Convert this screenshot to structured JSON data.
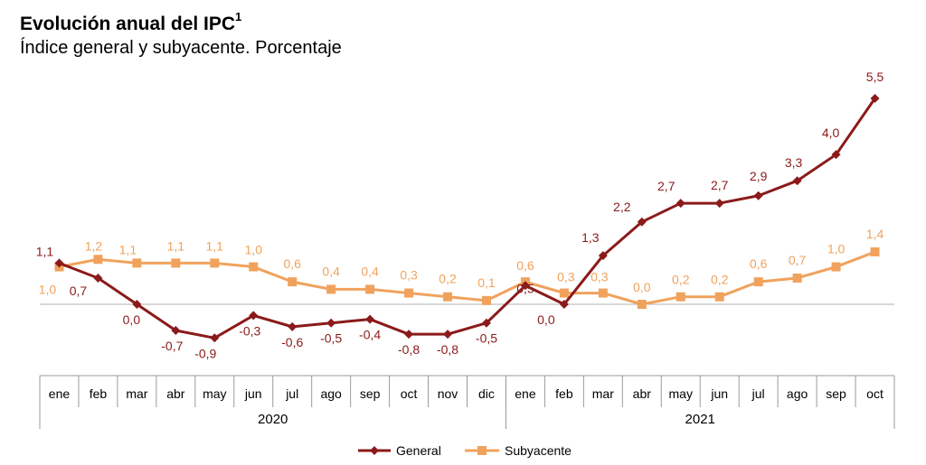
{
  "header": {
    "title": "Evolución anual del IPC",
    "title_sup": "1",
    "subtitle": "Índice general y subyacente. Porcentaje"
  },
  "chart_data": {
    "type": "line",
    "categories": [
      "ene",
      "feb",
      "mar",
      "abr",
      "may",
      "jun",
      "jul",
      "ago",
      "sep",
      "oct",
      "nov",
      "dic",
      "ene",
      "feb",
      "mar",
      "abr",
      "may",
      "jun",
      "jul",
      "ago",
      "sep",
      "oct"
    ],
    "year_groups": [
      {
        "label": "2020",
        "count": 12
      },
      {
        "label": "2021",
        "count": 10
      }
    ],
    "ylim": [
      -1.3,
      5.8
    ],
    "grid": false,
    "legend_position": "bottom",
    "series": [
      {
        "name": "General",
        "color": "#8b1a1a",
        "marker": "diamond",
        "values": [
          1.1,
          0.7,
          0.0,
          -0.7,
          -0.9,
          -0.3,
          -0.6,
          -0.5,
          -0.4,
          -0.8,
          -0.8,
          -0.5,
          0.5,
          0.0,
          1.3,
          2.2,
          2.7,
          2.7,
          2.9,
          3.3,
          4.0,
          5.5
        ],
        "labels": [
          "1,1",
          "0,7",
          "0,0",
          "-0,7",
          "-0,9",
          "-0,3",
          "-0,6",
          "-0,5",
          "-0,4",
          "-0,8",
          "-0,8",
          "-0,5",
          "0,5",
          "0,0",
          "1,3",
          "2,2",
          "2,7",
          "2,7",
          "2,9",
          "3,3",
          "4,0",
          "5,5"
        ]
      },
      {
        "name": "Subyacente",
        "color": "#f0a25c",
        "marker": "square",
        "values": [
          1.0,
          1.2,
          1.1,
          1.1,
          1.1,
          1.0,
          0.6,
          0.4,
          0.4,
          0.3,
          0.2,
          0.1,
          0.6,
          0.3,
          0.3,
          0.0,
          0.2,
          0.2,
          0.6,
          0.7,
          1.0,
          1.4
        ],
        "labels": [
          "1,0",
          "1,2",
          "1,1",
          "1,1",
          "1,1",
          "1,0",
          "0,6",
          "0,4",
          "0,4",
          "0,3",
          "0,2",
          "0,1",
          "0,6",
          "0,3",
          "0,3",
          "0,0",
          "0,2",
          "0,2",
          "0,6",
          "0,7",
          "1,0",
          "1,4"
        ]
      }
    ]
  }
}
